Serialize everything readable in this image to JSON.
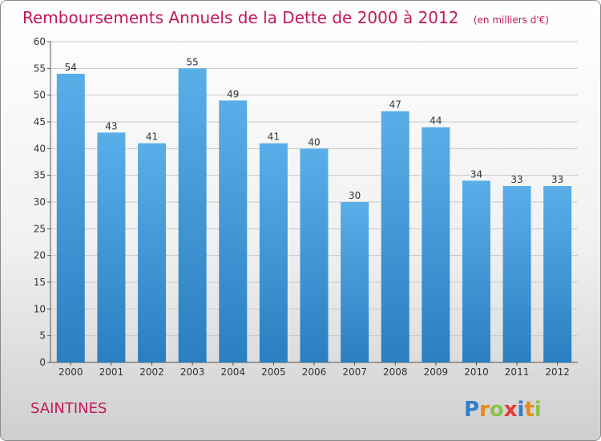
{
  "chart_data": {
    "type": "bar",
    "title": "Remboursements Annuels de la Dette de 2000 à 2012",
    "subtitle": "(en milliers d'€)",
    "categories": [
      "2000",
      "2001",
      "2002",
      "2003",
      "2004",
      "2005",
      "2006",
      "2007",
      "2008",
      "2009",
      "2010",
      "2011",
      "2012"
    ],
    "values": [
      54,
      43,
      41,
      55,
      49,
      41,
      40,
      30,
      47,
      44,
      34,
      33,
      33
    ],
    "ylim": [
      0,
      60
    ],
    "yticks": [
      0,
      5,
      10,
      15,
      20,
      25,
      30,
      35,
      40,
      45,
      50,
      55,
      60
    ],
    "grid": true,
    "data_labels": true,
    "colors": {
      "bar_top": "#5aaee8",
      "bar_bottom": "#2a7fc1",
      "title": "#c2185b"
    }
  },
  "footer": {
    "city": "SAINTINES",
    "brand_letters": [
      {
        "ch": "P",
        "color": "#2f7fc8"
      },
      {
        "ch": "r",
        "color": "#e88a1a"
      },
      {
        "ch": "o",
        "color": "#8bc34a"
      },
      {
        "ch": "x",
        "color": "#e53935"
      },
      {
        "ch": "i",
        "color": "#2f7fc8"
      },
      {
        "ch": "t",
        "color": "#e88a1a"
      },
      {
        "ch": "i",
        "color": "#8bc34a"
      }
    ]
  }
}
